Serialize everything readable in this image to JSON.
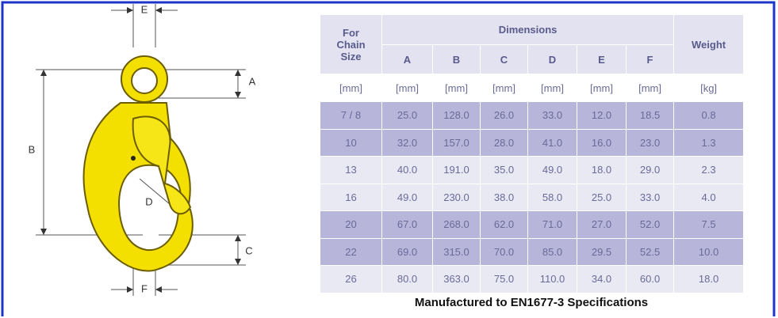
{
  "diagram": {
    "labels": {
      "E": "E",
      "A": "A",
      "B": "B",
      "C": "C",
      "D": "D",
      "F": "F"
    }
  },
  "table": {
    "header": {
      "chain_size": "For Chain Size",
      "dimensions": "Dimensions",
      "weight": "Weight",
      "columns": [
        "A",
        "B",
        "C",
        "D",
        "E",
        "F"
      ]
    },
    "units": [
      "[mm]",
      "[mm]",
      "[mm]",
      "[mm]",
      "[mm]",
      "[mm]",
      "[mm]",
      "[kg]"
    ],
    "rows": [
      [
        "7 / 8",
        "25.0",
        "128.0",
        "26.0",
        "33.0",
        "12.0",
        "18.5",
        "0.8"
      ],
      [
        "10",
        "32.0",
        "157.0",
        "28.0",
        "41.0",
        "16.0",
        "23.0",
        "1.3"
      ],
      [
        "13",
        "40.0",
        "191.0",
        "35.0",
        "49.0",
        "18.0",
        "29.0",
        "2.3"
      ],
      [
        "16",
        "49.0",
        "230.0",
        "38.0",
        "58.0",
        "25.0",
        "33.0",
        "4.0"
      ],
      [
        "20",
        "67.0",
        "268.0",
        "62.0",
        "71.0",
        "27.0",
        "52.0",
        "7.5"
      ],
      [
        "22",
        "69.0",
        "315.0",
        "70.0",
        "85.0",
        "29.5",
        "52.5",
        "10.0"
      ],
      [
        "26",
        "80.0",
        "363.0",
        "75.0",
        "110.0",
        "34.0",
        "60.0",
        "18.0"
      ]
    ]
  },
  "caption": "Manufactured to EN1677-3 Specifications"
}
